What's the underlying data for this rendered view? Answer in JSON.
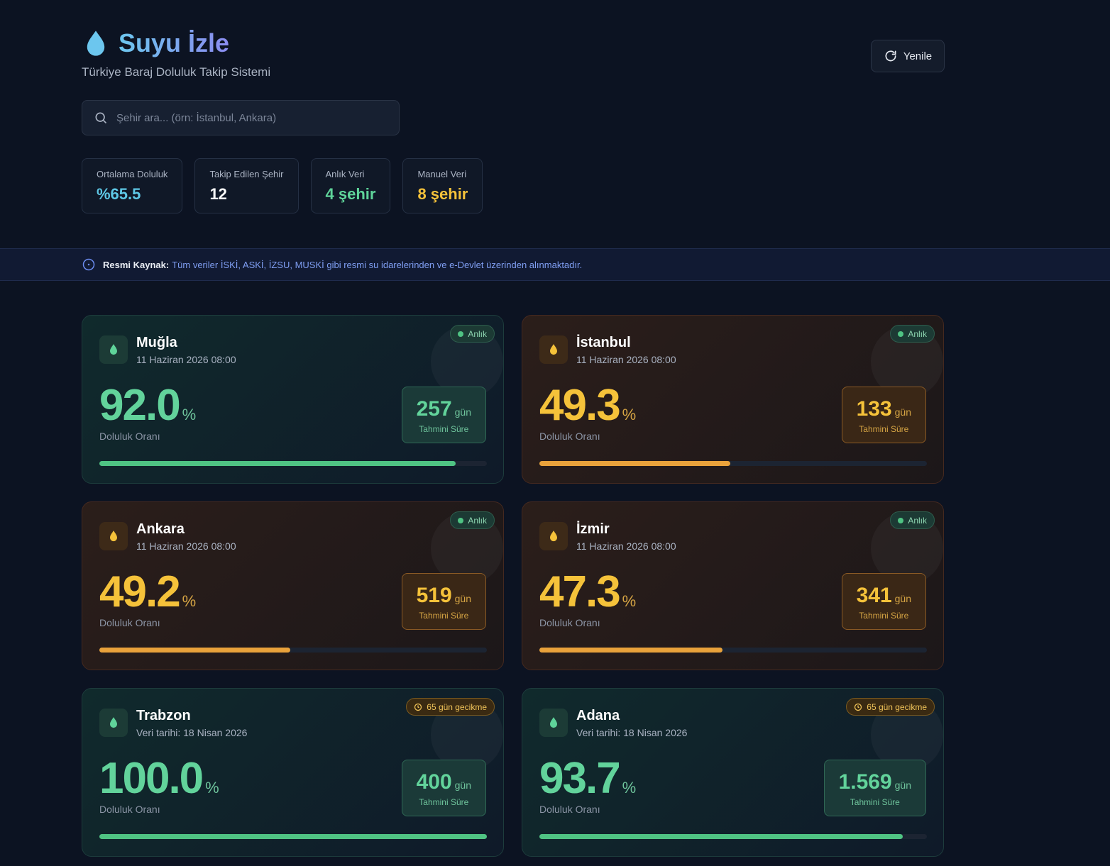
{
  "header": {
    "title": "Suyu İzle",
    "subtitle": "Türkiye Baraj Doluluk Takip Sistemi",
    "refresh_button": "Yenile"
  },
  "search": {
    "placeholder": "Şehir ara... (örn: İstanbul, Ankara)"
  },
  "stats": [
    {
      "label": "Ortalama Doluluk",
      "value": "%65.5",
      "color": "#5ec8e6"
    },
    {
      "label": "Takip Edilen Şehir",
      "value": "12",
      "color": "#ffffff"
    },
    {
      "label": "Anlık Veri",
      "value": "4 şehir",
      "color": "#5fd49a"
    },
    {
      "label": "Manuel Veri",
      "value": "8 şehir",
      "color": "#f5c23a"
    }
  ],
  "notice": {
    "label": "Resmi Kaynak:",
    "text": "Tüm veriler İSKİ, ASKİ, İZSU, MUSKİ gibi resmi su idarelerinden ve e-Devlet üzerinden alınmaktadır."
  },
  "card_labels": {
    "percent_sign": "%",
    "fill_label": "Doluluk Oranı",
    "days_unit": "gün",
    "days_label": "Tahmini Süre"
  },
  "cards": [
    {
      "city": "Muğla",
      "date": "11 Haziran 2026 08:00",
      "badge": "Anlık",
      "badge_kind": "live",
      "tone": "green",
      "fill": "92.0",
      "days": "257"
    },
    {
      "city": "İstanbul",
      "date": "11 Haziran 2026 08:00",
      "badge": "Anlık",
      "badge_kind": "live",
      "tone": "amber",
      "fill": "49.3",
      "days": "133"
    },
    {
      "city": "Ankara",
      "date": "11 Haziran 2026 08:00",
      "badge": "Anlık",
      "badge_kind": "live",
      "tone": "amber",
      "fill": "49.2",
      "days": "519"
    },
    {
      "city": "İzmir",
      "date": "11 Haziran 2026 08:00",
      "badge": "Anlık",
      "badge_kind": "live",
      "tone": "amber",
      "fill": "47.3",
      "days": "341"
    },
    {
      "city": "Trabzon",
      "date": "Veri tarihi: 18 Nisan 2026",
      "badge": "65 gün gecikme",
      "badge_kind": "delay",
      "tone": "green",
      "fill": "100.0",
      "days": "400"
    },
    {
      "city": "Adana",
      "date": "Veri tarihi: 18 Nisan 2026",
      "badge": "65 gün gecikme",
      "badge_kind": "delay",
      "tone": "green",
      "fill": "93.7",
      "days": "1.569"
    }
  ]
}
